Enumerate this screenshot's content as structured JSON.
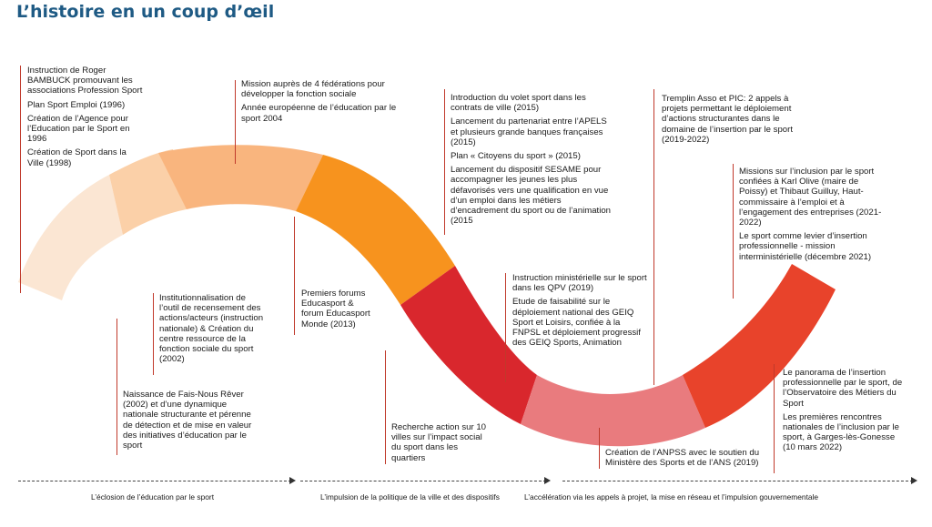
{
  "title": "L’histoire en un coup d’œil",
  "colors": {
    "title": "#1e5a84",
    "seg1": "#fbe6d3",
    "seg2": "#fbd0a8",
    "seg3": "#f9b57e",
    "seg4": "#f7931e",
    "seg5": "#d9272d",
    "seg6": "#e97b7e",
    "seg7": "#e8432b",
    "connector": "#c0392b"
  },
  "blocks": [
    {
      "id": "b1",
      "items": [
        "Instruction de Roger BAMBUCK promouvant les associations Profession Sport",
        "Plan Sport Emploi (1996)",
        "Création de l’Agence pour l’Education par le Sport en 1996",
        "Création de Sport dans la Ville (1998)"
      ]
    },
    {
      "id": "b2",
      "items": [
        "Mission auprès de 4 fédérations pour développer la fonction sociale",
        "Année européenne de l’éducation par le sport 2004"
      ]
    },
    {
      "id": "b3",
      "items": [
        "Institutionnalisation de l’outil de recensement des actions/acteurs (instruction nationale) & Création du centre ressource de la fonction sociale du sport (2002)"
      ]
    },
    {
      "id": "b4",
      "items": [
        "Naissance de Fais-Nous Rêver (2002) et d’une dynamique nationale structurante et pérenne de détection et de  mise en valeur des initiatives d’éducation par le sport"
      ]
    },
    {
      "id": "b5",
      "items": [
        "Premiers forums Educasport & forum Educasport Monde (2013)"
      ]
    },
    {
      "id": "b6",
      "items": [
        "Introduction du volet sport dans les contrats de ville (2015)",
        "Lancement du partenariat entre l’APELS et plusieurs grande banques françaises (2015)",
        "Plan « Citoyens du sport » (2015)",
        "Lancement du dispositif SESAME  pour accompagner les jeunes les plus défavorisés vers une qualification en vue d’un emploi dans les métiers d’encadrement du sport ou de l’animation (2015"
      ]
    },
    {
      "id": "b7",
      "items": [
        "Recherche action sur 10 villes sur l’impact social du sport dans les quartiers"
      ]
    },
    {
      "id": "b8",
      "items": [
        "Instruction ministérielle sur le sport dans les QPV (2019)",
        "Etude de faisabilité sur le déploiement national des GEIQ Sport et Loisirs, confiée à la FNPSL et déploiement progressif des GEIQ Sports, Animation"
      ]
    },
    {
      "id": "b9",
      "items": [
        "Création de l’ANPSS avec le soutien du Ministère des Sports et de l’ANS (2019)"
      ]
    },
    {
      "id": "b10",
      "items": [
        "Tremplin Asso et PIC: 2 appels à projets permettant le déploiement d’actions structurantes dans le domaine de l’insertion par le sport (2019-2022)"
      ]
    },
    {
      "id": "b11",
      "items": [
        "Missions sur l’inclusion par le sport confiées à Karl Olive (maire de Poissy) et Thibaut Guilluy, Haut-commissaire à l’emploi et à l’engagement des entreprises (2021-2022)",
        "Le sport comme levier d’insertion professionnelle - mission interministérielle (décembre 2021)"
      ]
    },
    {
      "id": "b12",
      "items": [
        "Le panorama de l’insertion professionnelle par le sport, de l’Observatoire des Métiers du Sport",
        "Les premières rencontres nationales de l’inclusion par le sport, à Garges-lès-Gonesse (10 mars 2022)"
      ]
    }
  ],
  "phases": [
    "L’éclosion de l’éducation par le sport",
    "L’impulsion de la politique de la ville et des dispositifs",
    "L’accélération via les appels à projet, la mise en réseau et l’impulsion gouvernementale"
  ]
}
